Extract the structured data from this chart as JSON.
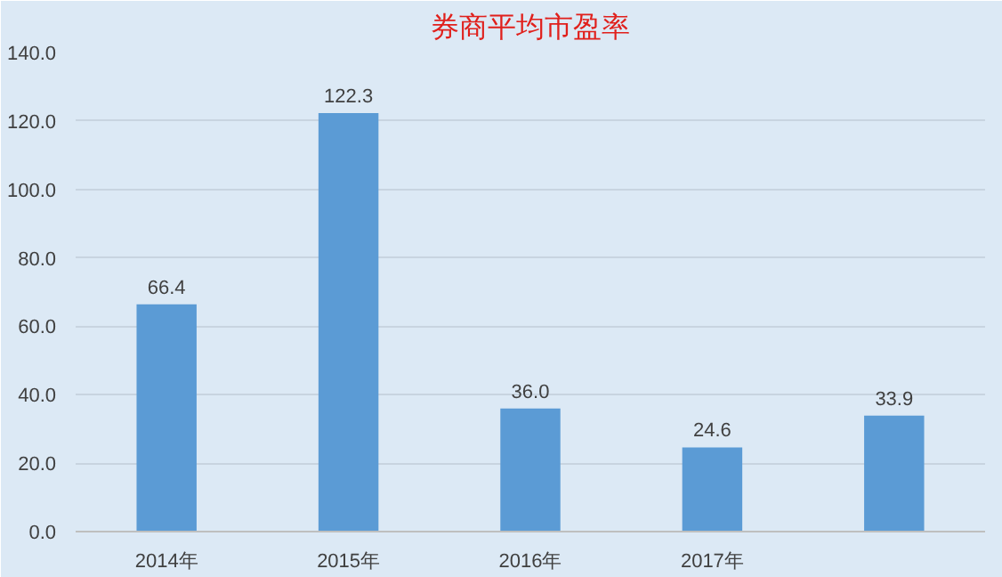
{
  "chart_data": {
    "type": "bar",
    "title": "券商平均市盈率",
    "categories": [
      "2014年",
      "2015年",
      "2016年",
      "2017年",
      null
    ],
    "values": [
      66.4,
      122.3,
      36.0,
      24.6,
      33.9
    ],
    "color": "#5b9bd5",
    "ylim": [
      0,
      140
    ],
    "yticks": [
      {
        "value": 0,
        "label": "0.0"
      },
      {
        "value": 20,
        "label": "20.0"
      },
      {
        "value": 40,
        "label": "40.0"
      },
      {
        "value": 60,
        "label": "60.0"
      },
      {
        "value": 80,
        "label": "80.0"
      },
      {
        "value": 100,
        "label": "100.0"
      },
      {
        "value": 120,
        "label": "120.0"
      },
      {
        "value": 140,
        "label": "140.0"
      }
    ],
    "value_labels": [
      "66.4",
      "122.3",
      "36.0",
      "24.6",
      "33.9"
    ],
    "grid": "y"
  }
}
